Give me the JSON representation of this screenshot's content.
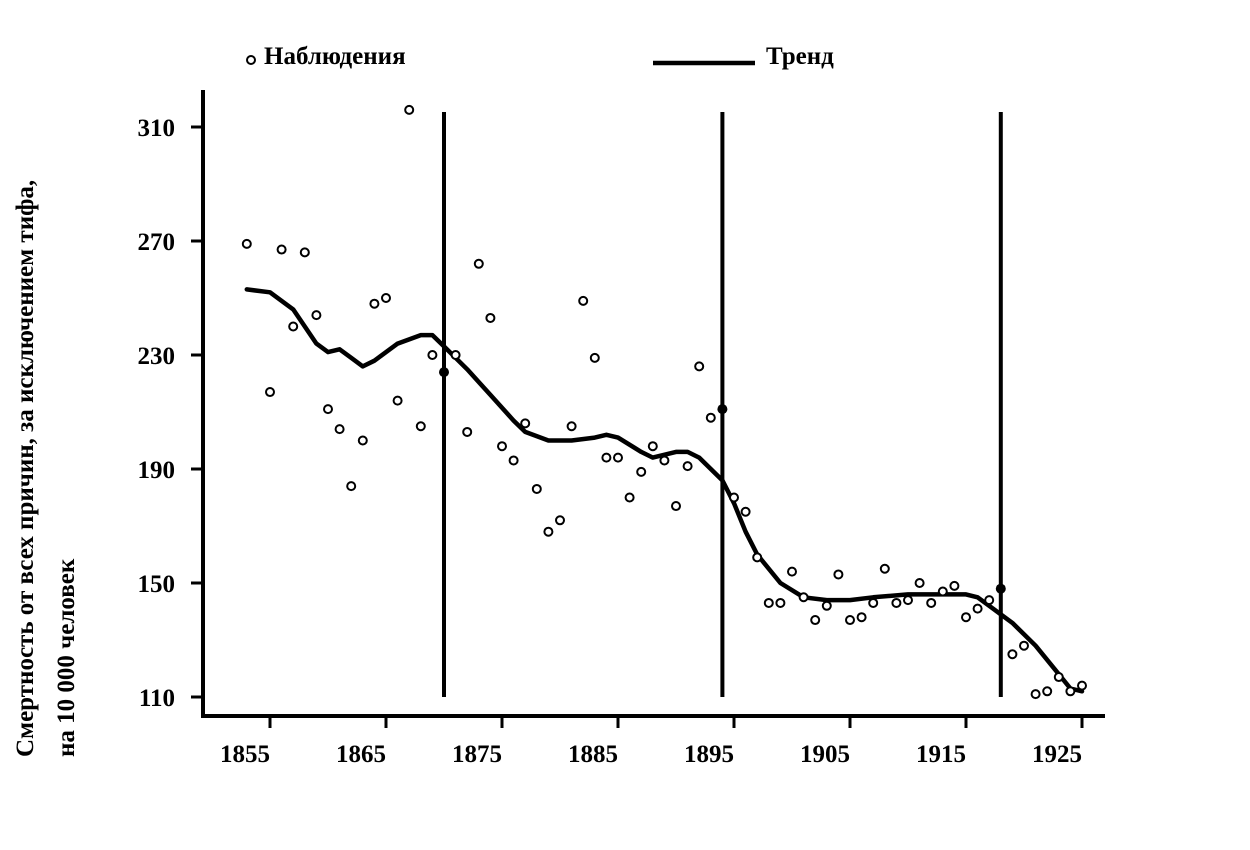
{
  "chart_data": {
    "type": "scatter",
    "ylabel_lines": [
      "Смертность от всех причин, за исключением тифа,",
      "на 10 000 человек"
    ],
    "xlim": [
      1850,
      1928
    ],
    "ylim": [
      103,
      320
    ],
    "x_ticks": [
      1855,
      1865,
      1875,
      1885,
      1895,
      1905,
      1915,
      1925
    ],
    "y_ticks": [
      110,
      150,
      190,
      230,
      270,
      310
    ],
    "legend": {
      "placement": "top",
      "observations_label": "Наблюдения",
      "trend_label": "Тренд"
    },
    "grid": false,
    "observations": [
      [
        1853,
        269
      ],
      [
        1855,
        217
      ],
      [
        1856,
        267
      ],
      [
        1857,
        240
      ],
      [
        1858,
        266
      ],
      [
        1859,
        244
      ],
      [
        1860,
        211
      ],
      [
        1861,
        204
      ],
      [
        1862,
        184
      ],
      [
        1863,
        200
      ],
      [
        1864,
        248
      ],
      [
        1865,
        250
      ],
      [
        1866,
        214
      ],
      [
        1867,
        316
      ],
      [
        1868,
        205
      ],
      [
        1869,
        230
      ],
      [
        1871,
        230
      ],
      [
        1872,
        203
      ],
      [
        1873,
        262
      ],
      [
        1874,
        243
      ],
      [
        1875,
        198
      ],
      [
        1876,
        193
      ],
      [
        1877,
        206
      ],
      [
        1878,
        183
      ],
      [
        1879,
        168
      ],
      [
        1880,
        172
      ],
      [
        1881,
        205
      ],
      [
        1882,
        249
      ],
      [
        1883,
        229
      ],
      [
        1884,
        194
      ],
      [
        1885,
        194
      ],
      [
        1886,
        180
      ],
      [
        1887,
        189
      ],
      [
        1888,
        198
      ],
      [
        1889,
        193
      ],
      [
        1890,
        177
      ],
      [
        1891,
        191
      ],
      [
        1892,
        226
      ],
      [
        1893,
        208
      ],
      [
        1895,
        180
      ],
      [
        1896,
        175
      ],
      [
        1897,
        159
      ],
      [
        1898,
        143
      ],
      [
        1899,
        143
      ],
      [
        1900,
        154
      ],
      [
        1901,
        145
      ],
      [
        1902,
        137
      ],
      [
        1903,
        142
      ],
      [
        1904,
        153
      ],
      [
        1905,
        137
      ],
      [
        1906,
        138
      ],
      [
        1907,
        143
      ],
      [
        1908,
        155
      ],
      [
        1909,
        143
      ],
      [
        1910,
        144
      ],
      [
        1911,
        150
      ],
      [
        1912,
        143
      ],
      [
        1913,
        147
      ],
      [
        1914,
        149
      ],
      [
        1915,
        138
      ],
      [
        1916,
        141
      ],
      [
        1917,
        144
      ],
      [
        1919,
        125
      ],
      [
        1920,
        128
      ],
      [
        1921,
        111
      ],
      [
        1922,
        112
      ],
      [
        1923,
        117
      ],
      [
        1924,
        112
      ],
      [
        1925,
        114
      ]
    ],
    "trend": [
      [
        1853,
        253
      ],
      [
        1855,
        252
      ],
      [
        1857,
        246
      ],
      [
        1859,
        234
      ],
      [
        1860,
        231
      ],
      [
        1861,
        232
      ],
      [
        1862,
        229
      ],
      [
        1863,
        226
      ],
      [
        1864,
        228
      ],
      [
        1866,
        234
      ],
      [
        1868,
        237
      ],
      [
        1869,
        237
      ],
      [
        1870,
        233
      ],
      [
        1872,
        225
      ],
      [
        1874,
        216
      ],
      [
        1876,
        207
      ],
      [
        1877,
        203
      ],
      [
        1879,
        200
      ],
      [
        1881,
        200
      ],
      [
        1883,
        201
      ],
      [
        1884,
        202
      ],
      [
        1885,
        201
      ],
      [
        1887,
        196
      ],
      [
        1888,
        194
      ],
      [
        1890,
        196
      ],
      [
        1891,
        196
      ],
      [
        1892,
        194
      ],
      [
        1894,
        186
      ],
      [
        1895,
        178
      ],
      [
        1896,
        168
      ],
      [
        1897,
        160
      ],
      [
        1899,
        150
      ],
      [
        1901,
        145
      ],
      [
        1903,
        144
      ],
      [
        1905,
        144
      ],
      [
        1907,
        145
      ],
      [
        1910,
        146
      ],
      [
        1913,
        146
      ],
      [
        1915,
        146
      ],
      [
        1916,
        145
      ],
      [
        1917,
        142
      ],
      [
        1919,
        136
      ],
      [
        1921,
        128
      ],
      [
        1923,
        118
      ],
      [
        1924,
        113
      ],
      [
        1925,
        112
      ]
    ],
    "breakpoints": [
      {
        "x": 1870,
        "y": 224
      },
      {
        "x": 1894,
        "y": 211
      },
      {
        "x": 1918,
        "y": 148
      }
    ]
  }
}
